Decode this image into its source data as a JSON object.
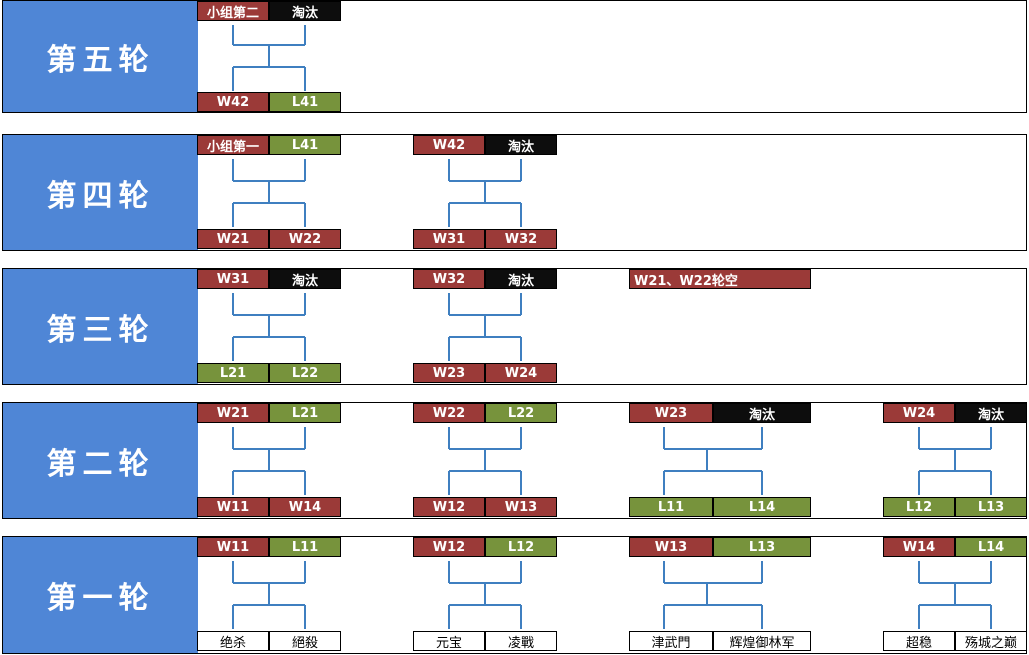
{
  "rounds": [
    {
      "label": "第五轮"
    },
    {
      "label": "第四轮"
    },
    {
      "label": "第三轮"
    },
    {
      "label": "第二轮"
    },
    {
      "label": "第一轮"
    }
  ],
  "r5": {
    "m1": {
      "top": [
        "小组第二",
        "淘汰"
      ],
      "bottom": [
        "W42",
        "L41"
      ]
    }
  },
  "r4": {
    "m1": {
      "top": [
        "小组第一",
        "L41"
      ],
      "bottom": [
        "W21",
        "W22"
      ]
    },
    "m2": {
      "top": [
        "W42",
        "淘汰"
      ],
      "bottom": [
        "W31",
        "W32"
      ]
    }
  },
  "r3": {
    "m1": {
      "top": [
        "W31",
        "淘汰"
      ],
      "bottom": [
        "L21",
        "L22"
      ]
    },
    "m2": {
      "top": [
        "W32",
        "淘汰"
      ],
      "bottom": [
        "W23",
        "W24"
      ]
    },
    "note": "W21、W22轮空"
  },
  "r2": {
    "m1": {
      "top": [
        "W21",
        "L21"
      ],
      "bottom": [
        "W11",
        "W14"
      ]
    },
    "m2": {
      "top": [
        "W22",
        "L22"
      ],
      "bottom": [
        "W12",
        "W13"
      ]
    },
    "m3": {
      "top": [
        "W23",
        "淘汰"
      ],
      "bottom": [
        "L11",
        "L14"
      ]
    },
    "m4": {
      "top": [
        "W24",
        "淘汰"
      ],
      "bottom": [
        "L12",
        "L13"
      ]
    }
  },
  "r1": {
    "m1": {
      "top": [
        "W11",
        "L11"
      ],
      "bottom": [
        "绝杀",
        "絕殺"
      ]
    },
    "m2": {
      "top": [
        "W12",
        "L12"
      ],
      "bottom": [
        "元宝",
        "凌戰"
      ]
    },
    "m3": {
      "top": [
        "W13",
        "L13"
      ],
      "bottom": [
        "津武門",
        "辉煌御林军"
      ]
    },
    "m4": {
      "top": [
        "W14",
        "L14"
      ],
      "bottom": [
        "超稳",
        "殇城之巅"
      ]
    }
  },
  "colors": {
    "winner": "#9b3a38",
    "loser": "#77933c",
    "eliminated": "#0d0d0d",
    "round_label_bg": "#4f86d6",
    "bracket_line": "#3f7fc0"
  }
}
